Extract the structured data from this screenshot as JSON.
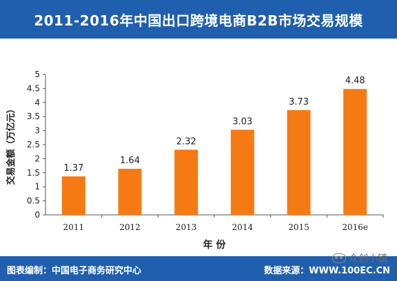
{
  "title": "2011-2016年中国出口跨境电商B2B市场交易规模",
  "footer": {
    "left": "图表编制：中国电子商务研究中心",
    "right": "数据来源：WWW.100EC.CN"
  },
  "watermark": {
    "text": "众创小镇",
    "icon": "wechat-icon"
  },
  "colors": {
    "header_bg": "#1f5fae",
    "bar": "#f57a14",
    "axis": "#555555"
  },
  "chart_data": {
    "type": "bar",
    "categories": [
      "2011",
      "2012",
      "2013",
      "2014",
      "2015",
      "2016e"
    ],
    "values": [
      1.37,
      1.64,
      2.32,
      3.03,
      3.73,
      4.48
    ],
    "value_labels": [
      "1.37",
      "1.64",
      "2.32",
      "3.03",
      "3.73",
      "4.48"
    ],
    "xlabel": "年 份",
    "ylabel": "交易金额（万亿元）",
    "ylim": [
      0,
      5
    ],
    "yticks": [
      "0",
      "0.5",
      "1",
      "1.5",
      "2",
      "2.5",
      "3",
      "3.5",
      "4",
      "4.5",
      "5"
    ],
    "grid": false,
    "legend": "none"
  }
}
